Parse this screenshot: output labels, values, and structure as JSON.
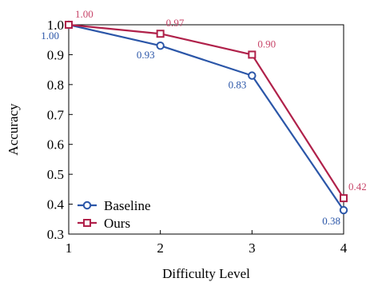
{
  "chart_data": {
    "type": "line",
    "title": "",
    "xlabel": "Difficulty Level",
    "ylabel": "Accuracy",
    "x": [
      1,
      2,
      3,
      4
    ],
    "xticks": [
      "1",
      "2",
      "3",
      "4"
    ],
    "yticks": [
      "0.3",
      "0.4",
      "0.5",
      "0.6",
      "0.7",
      "0.8",
      "0.9",
      "1.0"
    ],
    "xlim": [
      1,
      4
    ],
    "ylim": [
      0.3,
      1.0
    ],
    "grid": false,
    "legend": "bottom-left",
    "series": [
      {
        "name": "Baseline",
        "values": [
          1.0,
          0.93,
          0.83,
          0.38
        ],
        "labels": [
          "1.00",
          "0.93",
          "0.83",
          "0.38"
        ],
        "color": "#2b56a8",
        "marker": "circle"
      },
      {
        "name": "Ours",
        "values": [
          1.0,
          0.97,
          0.9,
          0.42
        ],
        "labels": [
          "1.00",
          "0.97",
          "0.90",
          "0.42"
        ],
        "color": "#b0214a",
        "marker": "square",
        "label_color": "#c8466a"
      }
    ]
  }
}
